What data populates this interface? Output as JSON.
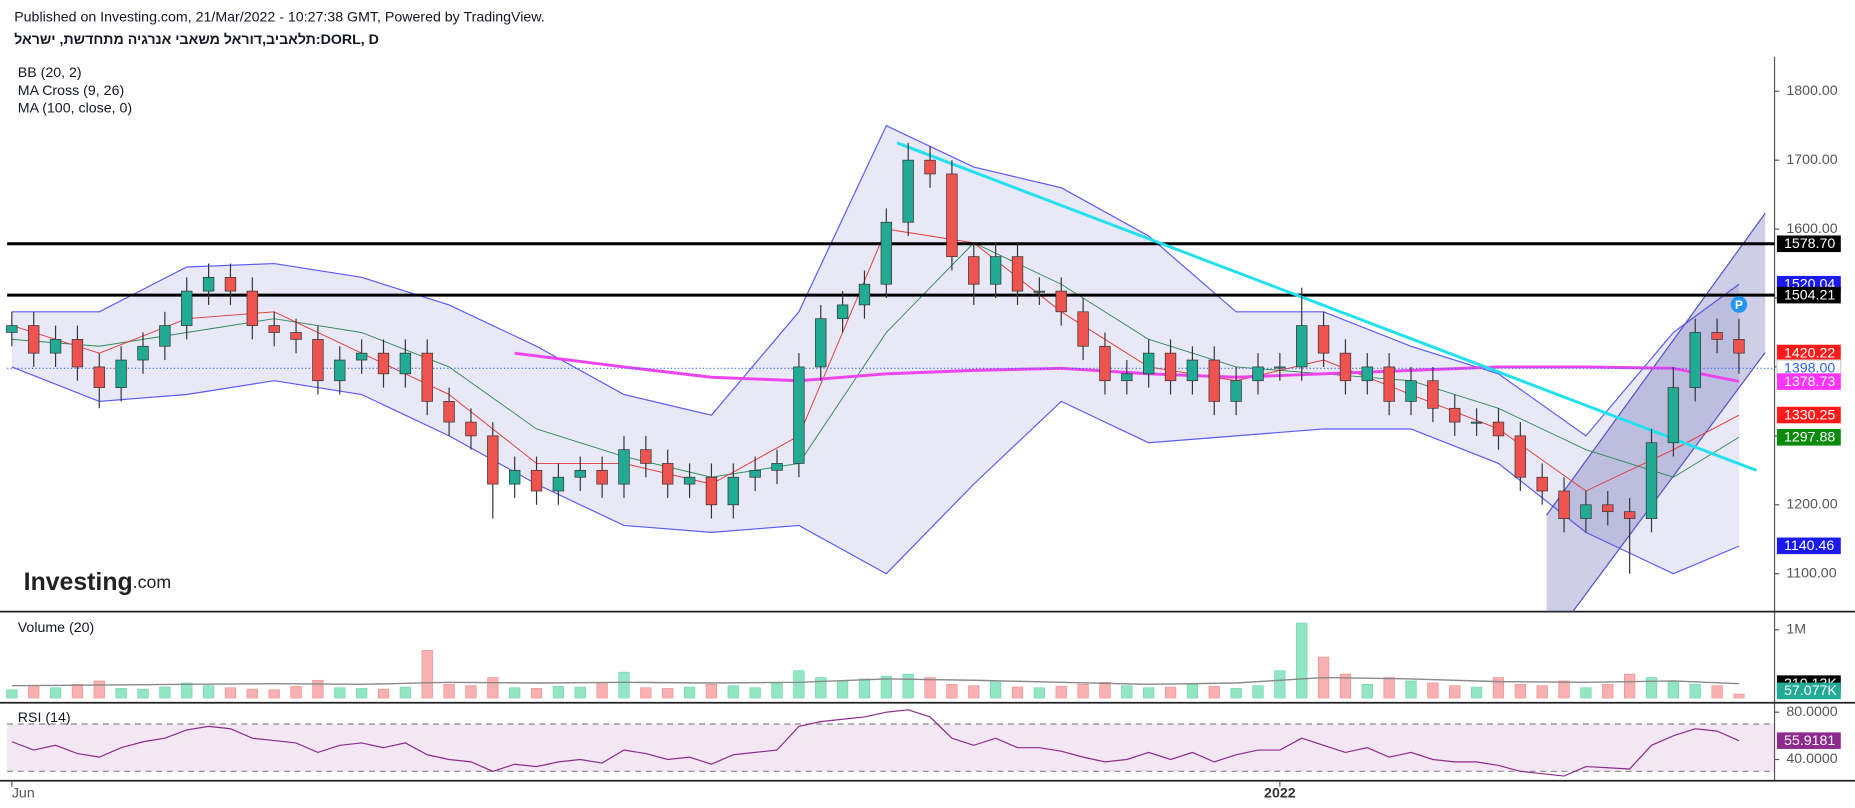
{
  "header": {
    "published": "Published on Investing.com, 21/Mar/2022 - 10:27:38 GMT, Powered by TradingView.",
    "symbol": "תלאביב,דוראל משאבי אנרגיה מתחדשת, ישראל:DORL, D"
  },
  "logo": {
    "brand": "Investing",
    "suffix": ".com"
  },
  "chart_data": {
    "type": "candlestick",
    "categories": [
      "Jun",
      null,
      null,
      null,
      null,
      null,
      null,
      null,
      null,
      null,
      null,
      null,
      null,
      null,
      null,
      null,
      null,
      null,
      null,
      null,
      null,
      null,
      null,
      null,
      null,
      null,
      null,
      null,
      null,
      null,
      null,
      null,
      null,
      null,
      null,
      null,
      null,
      null,
      null,
      null,
      null,
      null,
      null,
      null,
      null,
      null,
      null,
      null,
      null,
      null,
      null,
      null,
      null,
      null,
      null,
      null,
      null,
      null,
      "2022",
      null,
      null,
      null,
      null,
      null,
      null,
      null,
      null,
      null,
      null,
      null,
      null,
      null,
      null,
      null,
      null,
      null,
      null,
      null,
      null,
      null
    ],
    "open": [
      1450,
      1460,
      1420,
      1440,
      1400,
      1370,
      1410,
      1430,
      1460,
      1510,
      1530,
      1510,
      1460,
      1450,
      1440,
      1380,
      1410,
      1420,
      1390,
      1420,
      1350,
      1320,
      1300,
      1230,
      1250,
      1220,
      1240,
      1250,
      1230,
      1280,
      1260,
      1230,
      1240,
      1200,
      1240,
      1250,
      1260,
      1400,
      1470,
      1490,
      1520,
      1610,
      1700,
      1680,
      1560,
      1520,
      1560,
      1510,
      1510,
      1480,
      1430,
      1380,
      1390,
      1420,
      1380,
      1410,
      1350,
      1380,
      1400,
      1400,
      1460,
      1420,
      1380,
      1400,
      1350,
      1380,
      1340,
      1320,
      1320,
      1300,
      1240,
      1220,
      1180,
      1200,
      1190,
      1180,
      1290,
      1370,
      1450,
      1440
    ],
    "high": [
      1480,
      1480,
      1460,
      1460,
      1420,
      1430,
      1450,
      1480,
      1530,
      1550,
      1550,
      1530,
      1480,
      1470,
      1460,
      1430,
      1440,
      1440,
      1440,
      1440,
      1370,
      1340,
      1320,
      1270,
      1270,
      1260,
      1270,
      1270,
      1300,
      1300,
      1280,
      1260,
      1260,
      1260,
      1270,
      1280,
      1420,
      1490,
      1510,
      1540,
      1630,
      1725,
      1720,
      1700,
      1580,
      1580,
      1580,
      1530,
      1530,
      1500,
      1450,
      1410,
      1440,
      1440,
      1430,
      1430,
      1400,
      1420,
      1420,
      1515,
      1480,
      1440,
      1420,
      1420,
      1400,
      1400,
      1360,
      1340,
      1340,
      1320,
      1260,
      1240,
      1220,
      1220,
      1210,
      1310,
      1400,
      1470,
      1470,
      1470
    ],
    "low": [
      1430,
      1400,
      1400,
      1380,
      1340,
      1350,
      1390,
      1410,
      1440,
      1490,
      1490,
      1440,
      1430,
      1420,
      1360,
      1360,
      1390,
      1370,
      1370,
      1330,
      1300,
      1280,
      1180,
      1210,
      1200,
      1200,
      1220,
      1210,
      1210,
      1240,
      1210,
      1210,
      1180,
      1180,
      1220,
      1230,
      1240,
      1380,
      1450,
      1470,
      1500,
      1590,
      1660,
      1540,
      1490,
      1500,
      1490,
      1490,
      1460,
      1410,
      1360,
      1360,
      1370,
      1360,
      1360,
      1330,
      1330,
      1360,
      1380,
      1380,
      1400,
      1360,
      1360,
      1330,
      1330,
      1320,
      1300,
      1300,
      1280,
      1220,
      1200,
      1160,
      1160,
      1170,
      1100,
      1160,
      1270,
      1350,
      1420,
      1390
    ],
    "close": [
      1460,
      1420,
      1440,
      1400,
      1370,
      1410,
      1430,
      1460,
      1510,
      1530,
      1510,
      1460,
      1450,
      1440,
      1380,
      1410,
      1420,
      1390,
      1420,
      1350,
      1320,
      1300,
      1230,
      1250,
      1220,
      1240,
      1250,
      1230,
      1280,
      1260,
      1230,
      1240,
      1200,
      1240,
      1250,
      1260,
      1400,
      1470,
      1490,
      1520,
      1610,
      1700,
      1680,
      1560,
      1520,
      1560,
      1510,
      1510,
      1480,
      1430,
      1380,
      1390,
      1420,
      1380,
      1410,
      1350,
      1380,
      1400,
      1400,
      1460,
      1420,
      1380,
      1400,
      1350,
      1380,
      1340,
      1320,
      1320,
      1300,
      1240,
      1220,
      1180,
      1200,
      1190,
      1180,
      1290,
      1370,
      1450,
      1440,
      1420
    ],
    "up_color": "#22ab94",
    "down_color": "#ef5350",
    "ylim": [
      1045,
      1850
    ],
    "yticks": [
      {
        "value": 1100,
        "label": "1100.00"
      },
      {
        "value": 1200,
        "label": "1200.00"
      },
      {
        "value": 1300,
        "label": "1300.00"
      },
      {
        "value": 1400,
        "label": "1400.00"
      },
      {
        "value": 1500,
        "label": "1500.00"
      },
      {
        "value": 1600,
        "label": "1600.00"
      },
      {
        "value": 1700,
        "label": "1700.00"
      },
      {
        "value": 1800,
        "label": "1800.00"
      }
    ],
    "badge": "P",
    "indicators": {
      "bb": {
        "name": "BB (20, 2)",
        "color": "#5b5bf5",
        "fill": "rgba(120,120,200,0.17)",
        "x": [
          0,
          4,
          8,
          12,
          16,
          20,
          24,
          28,
          32,
          36,
          40,
          44,
          48,
          52,
          56,
          60,
          64,
          68,
          72,
          76,
          79
        ],
        "upper": [
          1480,
          1480,
          1545,
          1550,
          1530,
          1490,
          1430,
          1360,
          1330,
          1480,
          1750,
          1690,
          1660,
          1590,
          1480,
          1480,
          1430,
          1390,
          1300,
          1450,
          1520
        ],
        "lower": [
          1400,
          1350,
          1360,
          1380,
          1360,
          1300,
          1230,
          1170,
          1160,
          1170,
          1100,
          1230,
          1350,
          1290,
          1300,
          1310,
          1310,
          1260,
          1160,
          1100,
          1140
        ]
      },
      "ma_cross": {
        "name": "MA Cross (9, 26)",
        "fast_color": "#e53935",
        "slow_color": "#2e8b57",
        "x": [
          0,
          4,
          8,
          12,
          16,
          20,
          24,
          28,
          32,
          36,
          40,
          44,
          48,
          52,
          56,
          60,
          64,
          68,
          72,
          76,
          79
        ],
        "fast": [
          1460,
          1420,
          1470,
          1480,
          1420,
          1360,
          1260,
          1260,
          1230,
          1300,
          1600,
          1580,
          1480,
          1400,
          1380,
          1410,
          1360,
          1310,
          1220,
          1280,
          1330
        ],
        "slow": [
          1440,
          1430,
          1450,
          1470,
          1450,
          1400,
          1310,
          1270,
          1240,
          1260,
          1450,
          1580,
          1520,
          1440,
          1400,
          1390,
          1380,
          1340,
          1280,
          1240,
          1298
        ]
      },
      "ma100": {
        "name": "MA (100, close, 0)",
        "color": "#ee44ee",
        "x": [
          23,
          28,
          32,
          36,
          40,
          44,
          48,
          52,
          56,
          60,
          64,
          68,
          72,
          76,
          79
        ],
        "values": [
          1420,
          1400,
          1385,
          1380,
          1390,
          1395,
          1398,
          1390,
          1385,
          1390,
          1395,
          1400,
          1400,
          1398,
          1379
        ]
      }
    },
    "trendline": {
      "color": "#22e0f0",
      "points": [
        [
          40.5,
          1725
        ],
        [
          79.8,
          1250
        ]
      ]
    },
    "channel": {
      "color": "#5050c8",
      "fill": "rgba(80,80,170,0.28)",
      "upper": [
        [
          70.2,
          1185
        ],
        [
          80.2,
          1623
        ]
      ],
      "lower": [
        [
          71.4,
          1045
        ],
        [
          80.2,
          1421
        ]
      ]
    },
    "price_labels": [
      {
        "value": 1578.7,
        "label": "1578.70",
        "bg": "#000000",
        "fg": "#ffffff",
        "line": "solid"
      },
      {
        "value": 1520.04,
        "label": "1520.04",
        "bg": "#1a1aee",
        "fg": "#ffffff"
      },
      {
        "value": 1504.21,
        "label": "1504.21",
        "bg": "#000000",
        "fg": "#ffffff",
        "line": "solid"
      },
      {
        "value": 1420.22,
        "label": "1420.22",
        "bg": "#ff1a1a",
        "fg": "#ffffff"
      },
      {
        "value": 1398,
        "label": "1398.00",
        "bg": "#ffffff",
        "fg": "#2962ff",
        "line": "dotted"
      },
      {
        "value": 1378.73,
        "label": "1378.73",
        "bg": "#ff33ff",
        "fg": "#ffffff"
      },
      {
        "value": 1330.25,
        "label": "1330.25",
        "bg": "#ff1a1a",
        "fg": "#ffffff"
      },
      {
        "value": 1297.88,
        "label": "1297.88",
        "bg": "#0a8a0a",
        "fg": "#ffffff"
      },
      {
        "value": 1140.46,
        "label": "1140.46",
        "bg": "#1a1aee",
        "fg": "#ffffff"
      }
    ],
    "volume": {
      "name": "Volume (20)",
      "up_color": "#92e6c4",
      "down_color": "#f8b0b0",
      "ma_color": "#8a8a8a",
      "values": [
        120000,
        180000,
        150000,
        200000,
        250000,
        140000,
        130000,
        160000,
        220000,
        180000,
        150000,
        130000,
        120000,
        170000,
        260000,
        150000,
        140000,
        130000,
        160000,
        700000,
        200000,
        180000,
        300000,
        150000,
        140000,
        170000,
        160000,
        230000,
        380000,
        150000,
        140000,
        160000,
        200000,
        180000,
        150000,
        220000,
        400000,
        300000,
        250000,
        280000,
        320000,
        350000,
        300000,
        200000,
        180000,
        250000,
        160000,
        150000,
        170000,
        200000,
        230000,
        180000,
        150000,
        160000,
        200000,
        170000,
        140000,
        180000,
        400000,
        1100000,
        600000,
        350000,
        200000,
        300000,
        250000,
        220000,
        180000,
        160000,
        300000,
        200000,
        180000,
        250000,
        150000,
        200000,
        350000,
        300000,
        250000,
        200000,
        180000,
        57077
      ],
      "ma_x": [
        0,
        4,
        8,
        12,
        16,
        20,
        24,
        28,
        32,
        36,
        40,
        44,
        48,
        52,
        56,
        60,
        64,
        68,
        72,
        76,
        79
      ],
      "ma": [
        180000,
        190000,
        200000,
        210000,
        200000,
        230000,
        220000,
        230000,
        220000,
        230000,
        280000,
        260000,
        230000,
        200000,
        220000,
        300000,
        280000,
        240000,
        230000,
        250000,
        210130
      ],
      "ylim": [
        0,
        1250000
      ],
      "yticks": [
        {
          "value": 1000000,
          "label": "1M"
        }
      ],
      "labels": [
        {
          "value": 210130,
          "label": "210.13K",
          "bg": "#000000"
        },
        {
          "value": 57077,
          "label": "57.077K",
          "bg": "#22ab94"
        }
      ]
    },
    "rsi": {
      "name": "RSI (14)",
      "color": "#8e2a8e",
      "fill": "rgba(150,60,150,0.12)",
      "values": [
        55,
        48,
        52,
        45,
        42,
        50,
        55,
        58,
        65,
        68,
        66,
        58,
        56,
        54,
        46,
        52,
        54,
        50,
        54,
        44,
        40,
        38,
        30,
        36,
        34,
        38,
        40,
        37,
        48,
        45,
        40,
        42,
        36,
        44,
        46,
        48,
        68,
        72,
        74,
        76,
        80,
        82,
        76,
        58,
        52,
        58,
        50,
        50,
        47,
        42,
        38,
        40,
        46,
        40,
        46,
        38,
        44,
        48,
        48,
        58,
        52,
        46,
        50,
        42,
        46,
        40,
        38,
        38,
        35,
        30,
        28,
        26,
        34,
        33,
        32,
        52,
        60,
        66,
        64,
        55.9181
      ],
      "last_label": "55.9181",
      "ylim": [
        25,
        84
      ],
      "yticks": [
        {
          "value": 80,
          "label": "80.0000"
        },
        {
          "value": 40,
          "label": "40.0000"
        }
      ],
      "bands": [
        30,
        70
      ]
    }
  }
}
